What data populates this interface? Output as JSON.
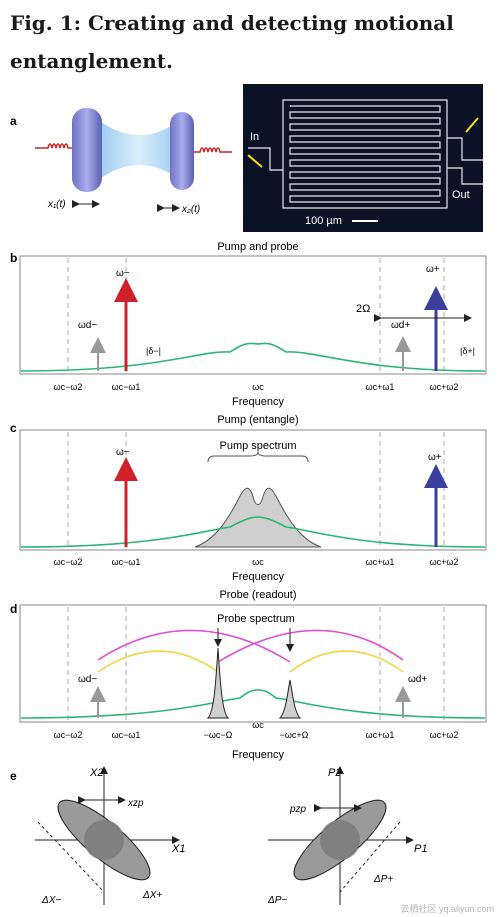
{
  "title_line1": "Fig. 1: Creating and detecting motional",
  "title_line2": "entanglement.",
  "panels": {
    "a": {
      "label": "a",
      "x1": "x₁(t)",
      "x2": "x₂(t)",
      "in": "In",
      "out": "Out",
      "scale": "100 µm"
    },
    "b": {
      "label": "b",
      "title": "Pump and probe",
      "xlabel": "Frequency",
      "ticks": [
        "ωc−ω2",
        "ωc−ω1",
        "ωc",
        "ωc+ω1",
        "ωc+ω2"
      ],
      "omega_minus": "ω−",
      "omega_plus": "ω+",
      "omega_dminus": "ωd−",
      "omega_dplus": "ωd+",
      "delta_minus": "|δ−|",
      "delta_plus": "|δ+|",
      "two_omega": "2Ω"
    },
    "c": {
      "label": "c",
      "title": "Pump (entangle)",
      "xlabel": "Frequency",
      "pump_spectrum": "Pump spectrum",
      "ticks": [
        "ωc−ω2",
        "ωc−ω1",
        "ωc",
        "ωc+ω1",
        "ωc+ω2"
      ],
      "omega_minus": "ω−",
      "omega_plus": "ω+"
    },
    "d": {
      "label": "d",
      "title": "Probe (readout)",
      "xlabel": "Frequency",
      "probe_spectrum": "Probe spectrum",
      "ticks": [
        "ωc−ω2",
        "ωc−ω1",
        "−ωc−Ω",
        "ωc",
        "−ωc+Ω",
        "ωc+ω1",
        "ωc+ω2"
      ],
      "omega_dminus": "ωd−",
      "omega_dplus": "ωd+"
    },
    "e": {
      "label": "e",
      "x2": "X2",
      "x1": "X1",
      "xzp": "xzp",
      "dx_minus": "ΔX−",
      "dx_plus": "ΔX+",
      "p2": "P2",
      "p1": "P1",
      "pzp": "pzp",
      "dp_minus": "ΔP−",
      "dp_plus": "ΔP+"
    }
  },
  "watermark": "云栖社区 yq.aliyun.com",
  "colors": {
    "red_arrow": "#d0212a",
    "blue_arrow": "#3b3f9c",
    "green_curve": "#2bb673",
    "magenta_curve": "#e04fd0",
    "yellow_curve": "#f2d64b",
    "gray_fill": "#cfcfcf"
  }
}
